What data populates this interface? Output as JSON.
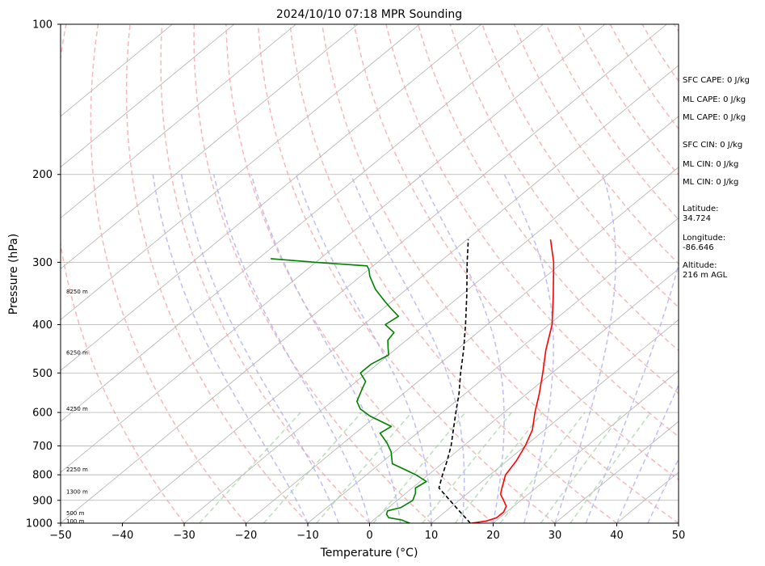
{
  "chart_data": {
    "type": "line",
    "title": "2024/10/10 07:18 MPR Sounding",
    "xlabel": "Temperature (°C)",
    "ylabel": "Pressure (hPa)",
    "xlim": [
      -50,
      50
    ],
    "ylim": [
      1000,
      100
    ],
    "y_scale": "log",
    "grid": true,
    "x_ticks": [
      -50,
      -40,
      -30,
      -20,
      -10,
      0,
      10,
      20,
      30,
      40,
      50
    ],
    "y_ticks": [
      100,
      200,
      300,
      400,
      500,
      600,
      700,
      800,
      900,
      1000
    ],
    "skew": "skew-T log-P",
    "background_lines": {
      "isotherms": {
        "color": "#b0b0b0",
        "style": "solid"
      },
      "dry_adiabats": {
        "color": "#f4a6a6",
        "style": "dashed"
      },
      "moist_adiabats": {
        "color": "#b3b3f2",
        "style": "dashed"
      },
      "mixing_ratio_lines": {
        "color": "#a9d6a9",
        "style": "dashed"
      }
    },
    "series": [
      {
        "role": "temperature",
        "color": "#ff0000",
        "points": [
          {
            "p": 1000,
            "t": 16.5
          },
          {
            "p": 990,
            "t": 18.5
          },
          {
            "p": 975,
            "t": 19.5
          },
          {
            "p": 950,
            "t": 19.5
          },
          {
            "p": 925,
            "t": 18.8
          },
          {
            "p": 900,
            "t": 17.2
          },
          {
            "p": 875,
            "t": 15.5
          },
          {
            "p": 850,
            "t": 14.5
          },
          {
            "p": 800,
            "t": 12.5
          },
          {
            "p": 750,
            "t": 11.5
          },
          {
            "p": 700,
            "t": 10.0
          },
          {
            "p": 650,
            "t": 8.0
          },
          {
            "p": 600,
            "t": 5.0
          },
          {
            "p": 550,
            "t": 2.0
          },
          {
            "p": 500,
            "t": -1.5
          },
          {
            "p": 450,
            "t": -5.5
          },
          {
            "p": 400,
            "t": -9.5
          },
          {
            "p": 350,
            "t": -15.0
          },
          {
            "p": 300,
            "t": -21.5
          },
          {
            "p": 270,
            "t": -26.5
          }
        ]
      },
      {
        "role": "dewpoint",
        "color": "#008000",
        "points": [
          {
            "p": 1000,
            "t": 6.5
          },
          {
            "p": 985,
            "t": 4.5
          },
          {
            "p": 975,
            "t": 2.0
          },
          {
            "p": 960,
            "t": 1.0
          },
          {
            "p": 945,
            "t": 0.5
          },
          {
            "p": 930,
            "t": 2.0
          },
          {
            "p": 900,
            "t": 2.5
          },
          {
            "p": 870,
            "t": 1.5
          },
          {
            "p": 850,
            "t": 0.5
          },
          {
            "p": 825,
            "t": 1.0
          },
          {
            "p": 800,
            "t": -2.0
          },
          {
            "p": 760,
            "t": -8.0
          },
          {
            "p": 720,
            "t": -10.5
          },
          {
            "p": 690,
            "t": -13.0
          },
          {
            "p": 660,
            "t": -16.0
          },
          {
            "p": 640,
            "t": -15.5
          },
          {
            "p": 610,
            "t": -21.0
          },
          {
            "p": 590,
            "t": -24.0
          },
          {
            "p": 570,
            "t": -26.0
          },
          {
            "p": 540,
            "t": -27.5
          },
          {
            "p": 520,
            "t": -28.5
          },
          {
            "p": 500,
            "t": -31.0
          },
          {
            "p": 480,
            "t": -31.0
          },
          {
            "p": 460,
            "t": -30.0
          },
          {
            "p": 445,
            "t": -31.5
          },
          {
            "p": 430,
            "t": -33.0
          },
          {
            "p": 415,
            "t": -33.5
          },
          {
            "p": 400,
            "t": -36.5
          },
          {
            "p": 385,
            "t": -36.0
          },
          {
            "p": 370,
            "t": -39.0
          },
          {
            "p": 360,
            "t": -41.0
          },
          {
            "p": 340,
            "t": -45.0
          },
          {
            "p": 320,
            "t": -48.5
          },
          {
            "p": 310,
            "t": -50.0
          },
          {
            "p": 305,
            "t": -51.0
          },
          {
            "p": 300,
            "t": -60.0
          },
          {
            "p": 295,
            "t": -68.0
          }
        ]
      },
      {
        "role": "parcel",
        "color": "#000000",
        "style": "dashed",
        "points": [
          {
            "p": 1000,
            "t": 16.3
          },
          {
            "p": 950,
            "t": 12.5
          },
          {
            "p": 900,
            "t": 8.5
          },
          {
            "p": 850,
            "t": 4.3
          },
          {
            "p": 800,
            "t": 2.3
          },
          {
            "p": 750,
            "t": 0.3
          },
          {
            "p": 700,
            "t": -2.0
          },
          {
            "p": 650,
            "t": -4.8
          },
          {
            "p": 600,
            "t": -7.8
          },
          {
            "p": 550,
            "t": -11.0
          },
          {
            "p": 500,
            "t": -14.8
          },
          {
            "p": 450,
            "t": -18.8
          },
          {
            "p": 400,
            "t": -23.5
          },
          {
            "p": 350,
            "t": -29.0
          },
          {
            "p": 300,
            "t": -35.5
          },
          {
            "p": 270,
            "t": -39.8
          }
        ]
      }
    ],
    "height_labels": [
      {
        "p": 990,
        "label": "100 m"
      },
      {
        "p": 955,
        "label": "500 m"
      },
      {
        "p": 865,
        "label": "1300 m"
      },
      {
        "p": 780,
        "label": "2250 m"
      },
      {
        "p": 590,
        "label": "4250 m"
      },
      {
        "p": 455,
        "label": "6250 m"
      },
      {
        "p": 343,
        "label": "8250 m"
      }
    ]
  },
  "side_panel": [
    {
      "text": "SFC CAPE: 0 J/kg"
    },
    {
      "text": "ML CAPE: 0 J/kg"
    },
    {
      "text": "ML CAPE: 0 J/kg"
    },
    {
      "text": "SFC CIN: 0 J/kg"
    },
    {
      "text": "ML CIN: 0 J/kg"
    },
    {
      "text": "ML CIN: 0 J/kg"
    },
    {
      "label": "Latitude:",
      "value": "34.724"
    },
    {
      "label": "Longitude:",
      "value": "-86.646"
    },
    {
      "label": "Altitude:",
      "value": "216 m AGL"
    }
  ]
}
